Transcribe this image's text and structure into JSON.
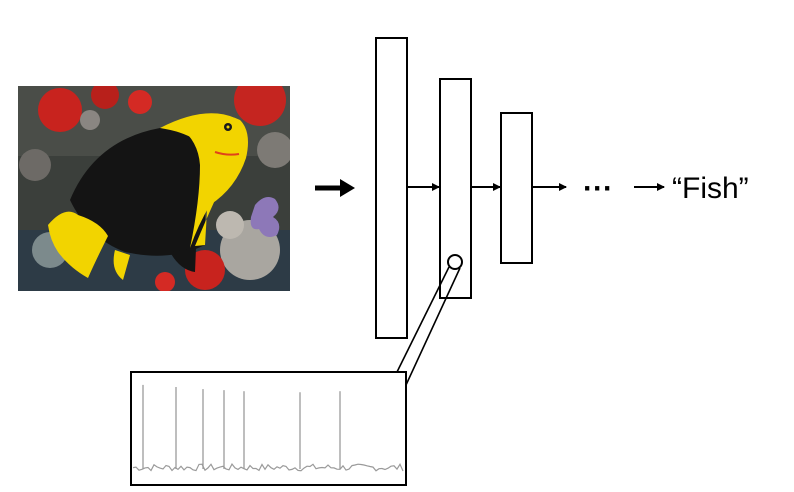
{
  "input_image": {
    "subject": "fish",
    "colors": {
      "background": "#3a3f3c",
      "coral_red": "#c8231e",
      "fish_black": "#141414",
      "fish_yellow": "#f2d400",
      "coral_purple": "#8d78b8"
    }
  },
  "pipeline": {
    "layers": 3,
    "ellipsis": "···",
    "output_label": "“Fish”"
  },
  "recording": {
    "spike_heights": [
      0.82,
      0.8,
      0.78,
      0.77,
      0.76,
      0.75,
      0.76
    ],
    "line_color": "#9a9a9a"
  },
  "colors": {
    "stroke": "#000000",
    "background": "#ffffff"
  }
}
